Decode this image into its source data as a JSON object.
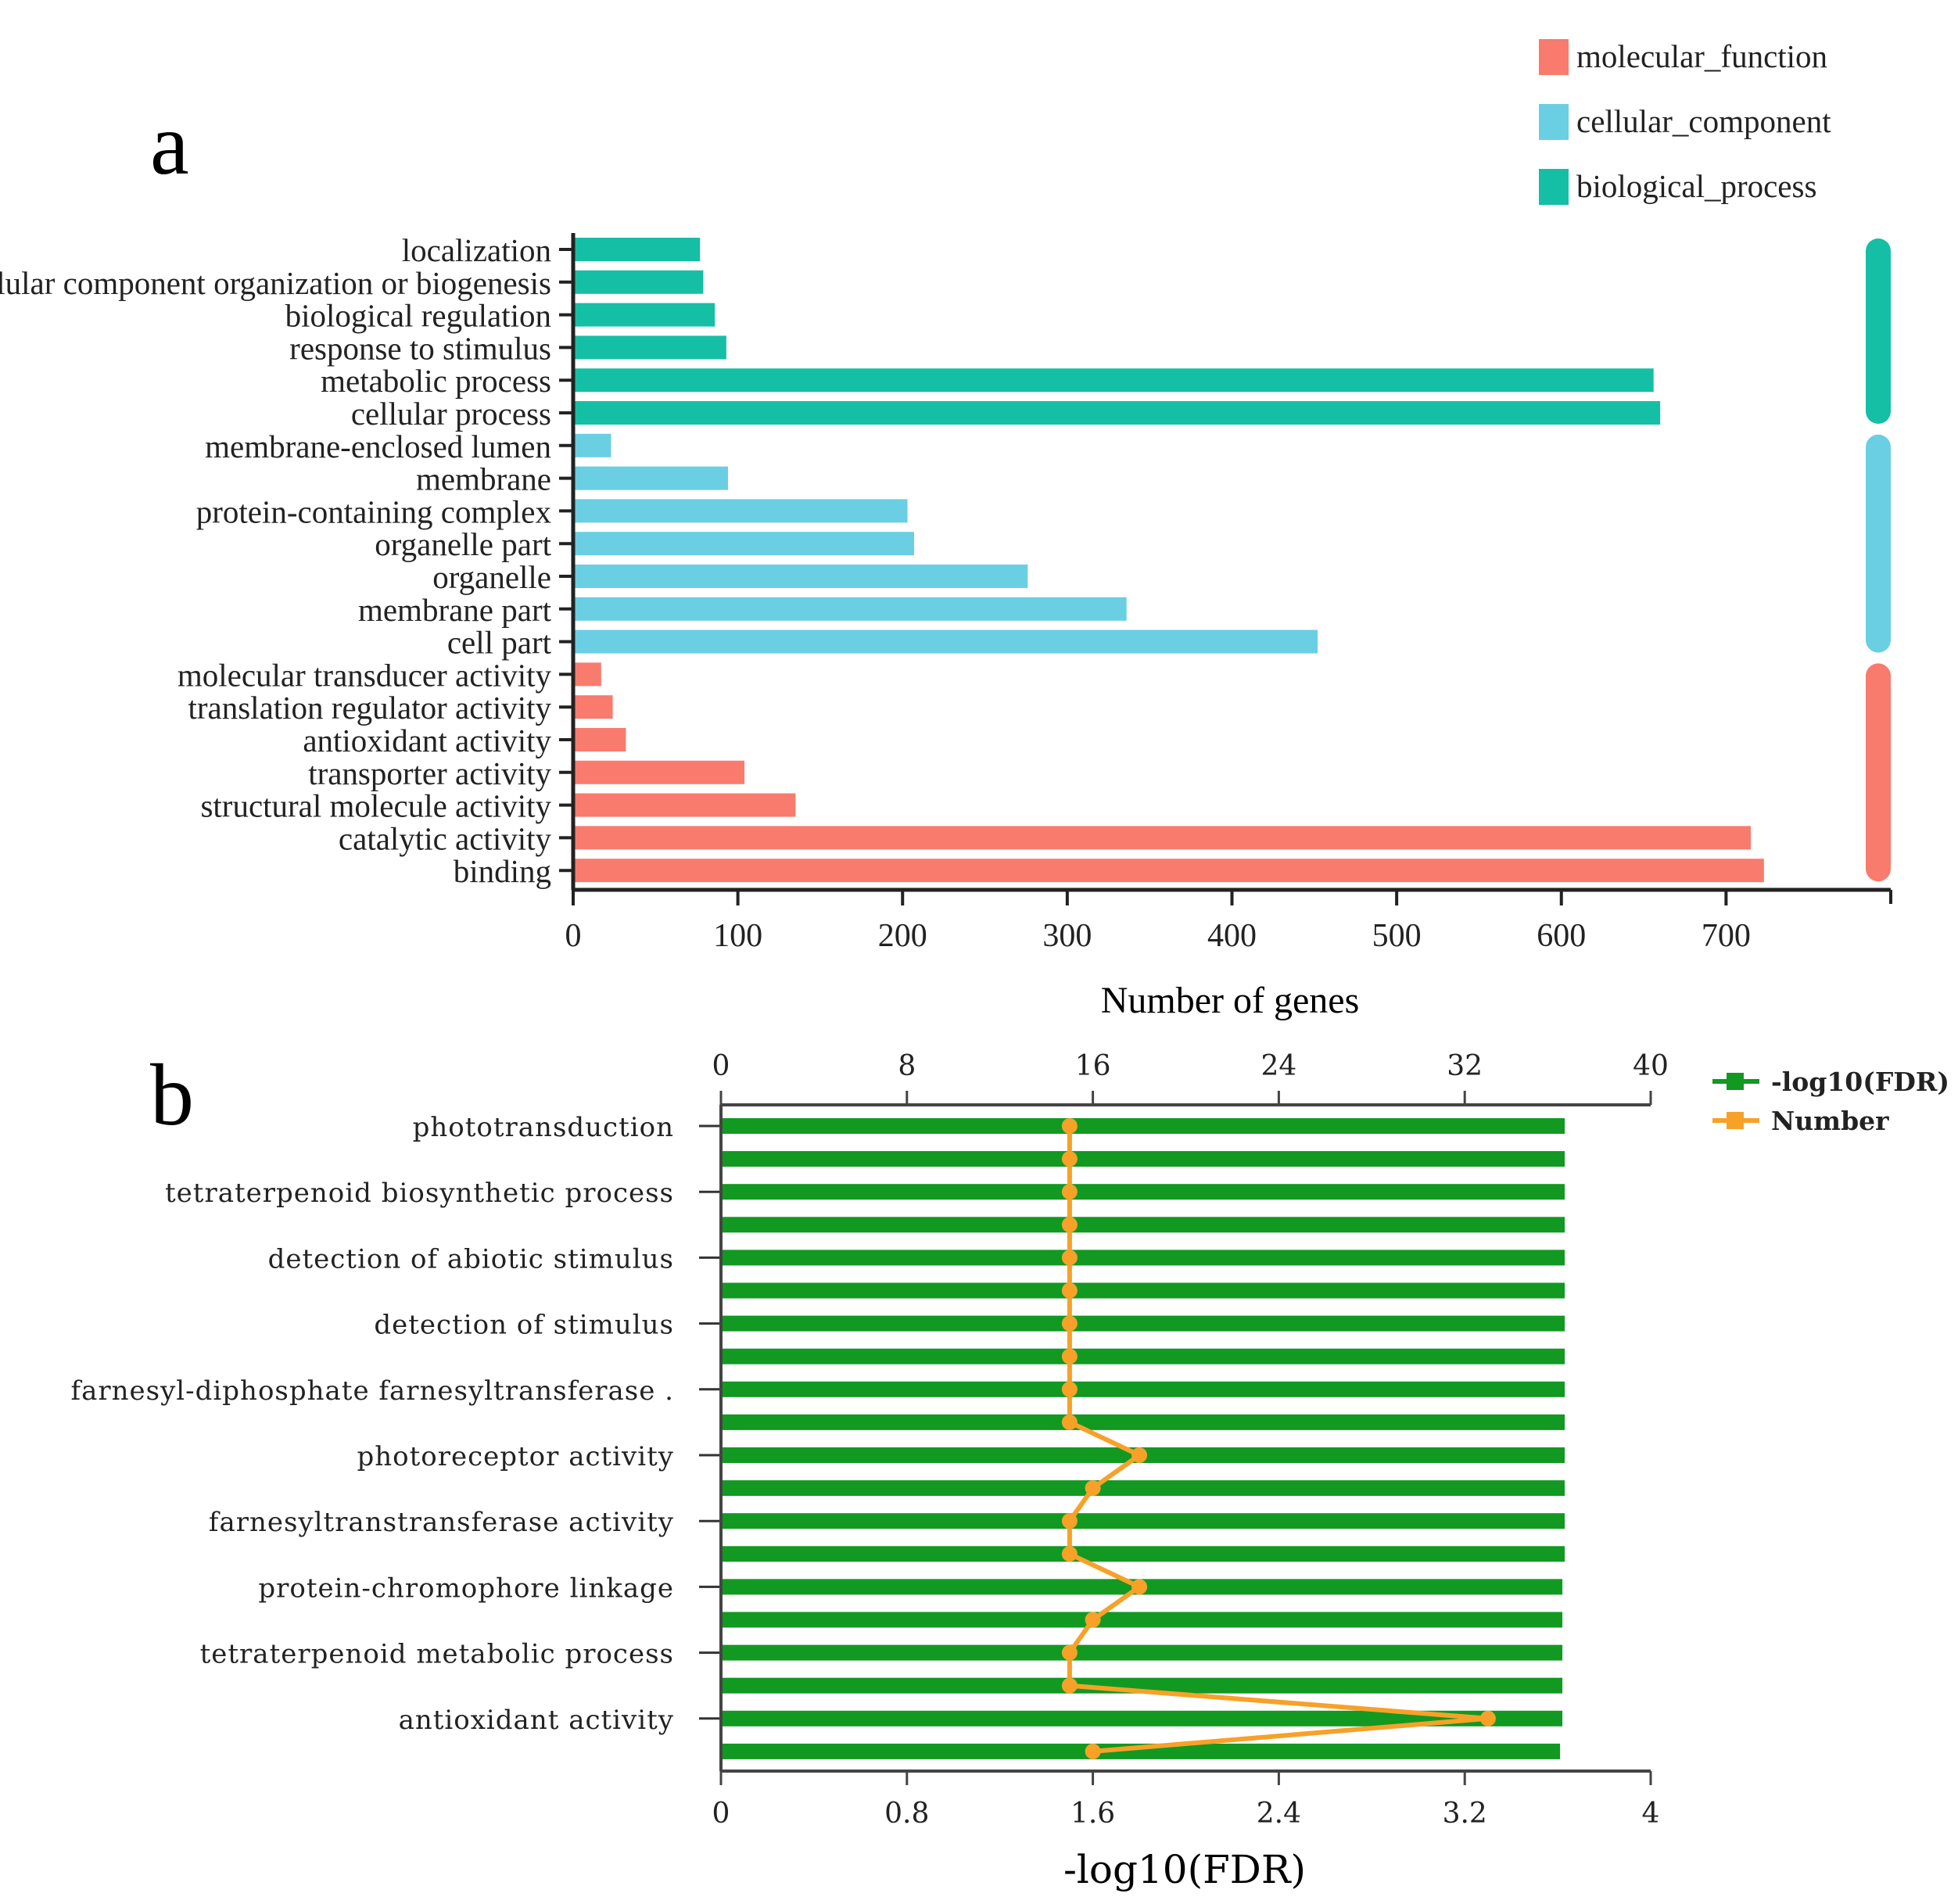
{
  "chart_data": [
    {
      "panel_label": "a",
      "type": "bar",
      "orientation": "horizontal",
      "categories": [
        "localization",
        "cellular component organization or biogenesis",
        "biological regulation",
        "response to stimulus",
        "metabolic process",
        "cellular process",
        "membrane-enclosed lumen",
        "membrane",
        "protein-containing complex",
        "organelle part",
        "organelle",
        "membrane part",
        "cell part",
        "molecular transducer activity",
        "translation regulator activity",
        "antioxidant activity",
        "transporter activity",
        "structural molecule activity",
        "catalytic activity",
        "binding"
      ],
      "values": [
        77,
        79,
        86,
        93,
        656,
        660,
        23,
        94,
        203,
        207,
        276,
        336,
        452,
        17,
        24,
        32,
        104,
        135,
        715,
        723
      ],
      "category_group": [
        "biological_process",
        "biological_process",
        "biological_process",
        "biological_process",
        "biological_process",
        "biological_process",
        "cellular_component",
        "cellular_component",
        "cellular_component",
        "cellular_component",
        "cellular_component",
        "cellular_component",
        "cellular_component",
        "molecular_function",
        "molecular_function",
        "molecular_function",
        "molecular_function",
        "molecular_function",
        "molecular_function",
        "molecular_function"
      ],
      "legend": [
        {
          "name": "molecular_function",
          "color": "#f87b6e"
        },
        {
          "name": "cellular_component",
          "color": "#6acfe3"
        },
        {
          "name": "biological_process",
          "color": "#15bfa5"
        }
      ],
      "legend_position": "top-right",
      "xlabel": "Number of genes",
      "ylabel": "",
      "xlim": [
        0,
        800
      ],
      "xticks": [
        "0",
        "100",
        "200",
        "300",
        "400",
        "500",
        "600",
        "700"
      ],
      "grid": false
    },
    {
      "panel_label": "b",
      "type": "bar",
      "orientation": "horizontal",
      "tick_labels": [
        "phototransduction",
        "tetraterpenoid biosynthetic process",
        "detection of abiotic stimulus",
        "detection of stimulus",
        "farnesyl-diphosphate farnesyltransferase .",
        "photoreceptor activity",
        "farnesyltranstransferase activity",
        "protein-chromophore linkage",
        "tetraterpenoid metabolic process",
        "antioxidant activity"
      ],
      "series": [
        {
          "name": "-log10(FDR)",
          "kind": "bar",
          "axis": "bottom",
          "color": "#119922",
          "values": [
            3.63,
            3.63,
            3.63,
            3.63,
            3.63,
            3.63,
            3.63,
            3.63,
            3.63,
            3.63,
            3.63,
            3.63,
            3.63,
            3.63,
            3.62,
            3.62,
            3.62,
            3.62,
            3.62,
            3.61
          ]
        },
        {
          "name": "Number",
          "kind": "line",
          "axis": "top",
          "color": "#f7a128",
          "values": [
            15,
            15,
            15,
            15,
            15,
            15,
            15,
            15,
            15,
            15,
            18,
            16,
            15,
            15,
            18,
            16,
            15,
            15,
            33,
            16
          ]
        }
      ],
      "legend_position": "top-right",
      "xlabel": "-log10(FDR)",
      "xlim_bottom": [
        0,
        4
      ],
      "xticks_bottom": [
        "0",
        "0.8",
        "1.6",
        "2.4",
        "3.2",
        "4"
      ],
      "xlim_top": [
        0,
        40
      ],
      "xticks_top": [
        "0",
        "8",
        "16",
        "24",
        "32",
        "40"
      ],
      "grid": false
    }
  ]
}
